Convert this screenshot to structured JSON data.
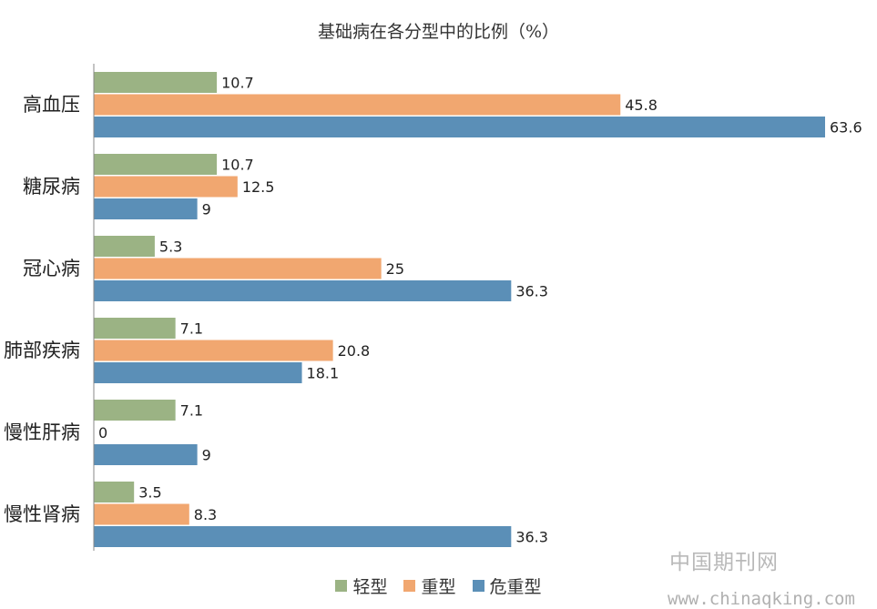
{
  "chart_data": {
    "type": "bar",
    "orientation": "horizontal",
    "title": "基础病在各分型中的比例（%）",
    "categories": [
      "高血压",
      "糖尿病",
      "冠心病",
      "肺部疾病",
      "慢性肝病",
      "慢性肾病"
    ],
    "series": [
      {
        "name": "轻型",
        "color": "#9bb384",
        "values": [
          10.7,
          10.7,
          5.3,
          7.1,
          7.1,
          3.5
        ]
      },
      {
        "name": "重型",
        "color": "#f1a770",
        "values": [
          45.8,
          12.5,
          25,
          20.8,
          0,
          8.3
        ]
      },
      {
        "name": "危重型",
        "color": "#5b8fb7",
        "values": [
          63.6,
          9,
          36.3,
          18.1,
          9,
          36.3
        ]
      }
    ],
    "value_labels": [
      [
        "10.7",
        "45.8",
        "63.6"
      ],
      [
        "10.7",
        "12.5",
        "9"
      ],
      [
        "5.3",
        "25",
        "36.3"
      ],
      [
        "7.1",
        "20.8",
        "18.1"
      ],
      [
        "7.1",
        "0",
        "9"
      ],
      [
        "3.5",
        "8.3",
        "36.3"
      ]
    ],
    "xlim": [
      0,
      63.6
    ],
    "grid": false,
    "legend_position": "bottom"
  },
  "watermark": {
    "text_cn": "中国期刊网",
    "url": "www.chinaqking.com"
  }
}
